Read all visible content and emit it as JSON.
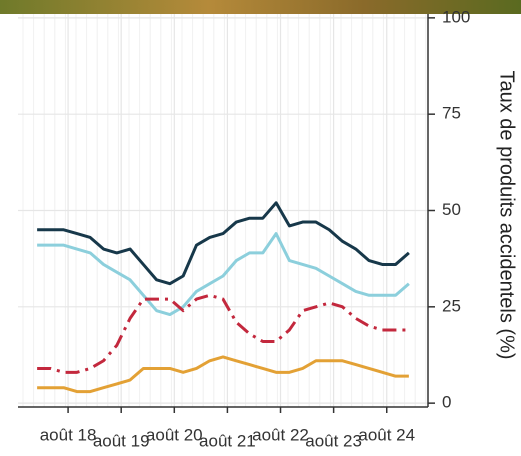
{
  "chart_data": {
    "type": "line",
    "y_label": "Taux de produits accidentels (%)",
    "x": [
      2018,
      2018.25,
      2018.5,
      2018.75,
      2019,
      2019.25,
      2019.5,
      2019.75,
      2020,
      2020.25,
      2020.5,
      2020.75,
      2021,
      2021.25,
      2021.5,
      2021.75,
      2022,
      2022.25,
      2022.5,
      2022.75,
      2023,
      2023.25,
      2023.5,
      2023.75,
      2024,
      2024.25,
      2024.5,
      2024.75,
      2025
    ],
    "series": [
      {
        "color": "#17384a",
        "dash": false,
        "values": [
          45,
          45,
          45,
          44,
          43,
          40,
          39,
          40,
          36,
          32,
          31,
          33,
          41,
          43,
          44,
          47,
          48,
          48,
          52,
          46,
          47,
          47,
          45,
          42,
          40,
          37,
          36,
          36,
          39
        ]
      },
      {
        "color": "#8ccfdc",
        "dash": false,
        "values": [
          41,
          41,
          41,
          40,
          39,
          36,
          34,
          32,
          28,
          24,
          23,
          25,
          29,
          31,
          33,
          37,
          39,
          39,
          44,
          37,
          36,
          35,
          33,
          31,
          29,
          28,
          28,
          28,
          31
        ]
      },
      {
        "color": "#c3283d",
        "dash": true,
        "values": [
          9,
          9,
          8,
          8,
          9,
          11,
          15,
          22,
          27,
          27,
          27,
          24,
          27,
          28,
          27,
          21,
          18,
          16,
          16,
          19,
          24,
          25,
          26,
          25,
          22,
          20,
          19,
          19,
          19
        ]
      },
      {
        "color": "#e3a135",
        "dash": false,
        "values": [
          4,
          4,
          4,
          3,
          3,
          4,
          5,
          6,
          9,
          9,
          9,
          8,
          9,
          11,
          12,
          11,
          10,
          9,
          8,
          8,
          9,
          11,
          11,
          11,
          10,
          9,
          8,
          7,
          7
        ]
      }
    ],
    "xlim": [
      2017.64,
      2025.36
    ],
    "xticks": [
      {
        "value": 2018.583,
        "label": "août 18"
      },
      {
        "value": 2019.583,
        "label": "août 19"
      },
      {
        "value": 2020.583,
        "label": "août 20"
      },
      {
        "value": 2021.583,
        "label": "août 21"
      },
      {
        "value": 2022.583,
        "label": "août 22"
      },
      {
        "value": 2023.583,
        "label": "août 23"
      },
      {
        "value": 2024.583,
        "label": "août 24"
      }
    ],
    "ylim": [
      -1,
      101
    ],
    "yticks": [
      0,
      25,
      50,
      75,
      100
    ],
    "grid": true
  }
}
